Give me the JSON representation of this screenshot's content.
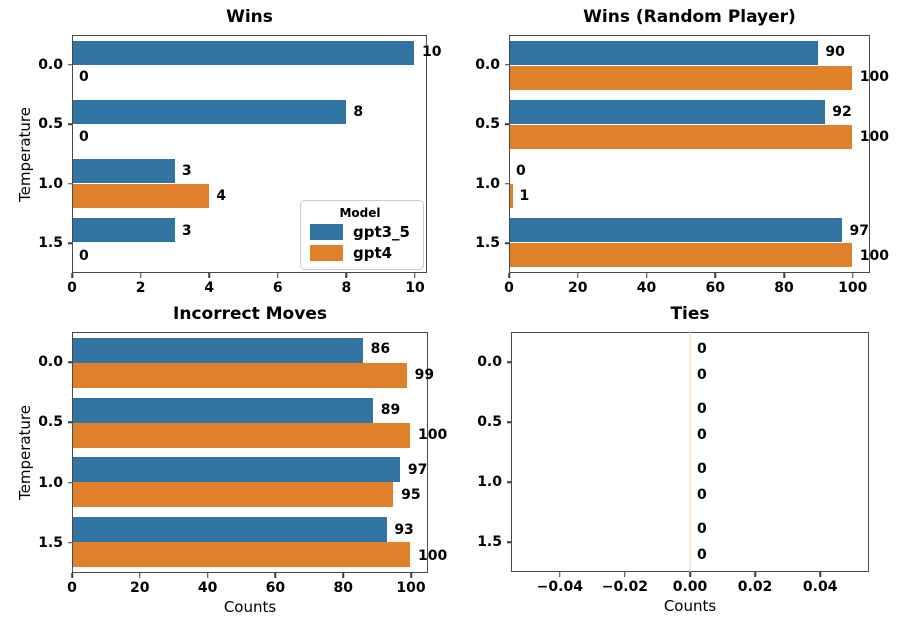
{
  "figure": {
    "background": "#ffffff",
    "colors": {
      "gpt3_5": "#3274a1",
      "gpt4": "#e1812c",
      "spine": "#4a4a4a",
      "text": "#000000"
    },
    "legend": {
      "title": "Model",
      "entries": [
        {
          "label": "gpt3_5",
          "color_key": "gpt3_5"
        },
        {
          "label": "gpt4",
          "color_key": "gpt4"
        }
      ]
    }
  },
  "chart_data": [
    {
      "id": "wins",
      "type": "bar",
      "orientation": "horizontal",
      "title": "Wins",
      "ylabel": "Temperature",
      "xlabel": "",
      "categories": [
        "0.0",
        "0.5",
        "1.0",
        "1.5"
      ],
      "series": [
        {
          "name": "gpt3_5",
          "values": [
            10,
            8,
            3,
            3
          ],
          "labels": [
            "10",
            "8",
            "3",
            "3"
          ]
        },
        {
          "name": "gpt4",
          "values": [
            0,
            0,
            4,
            0
          ],
          "labels": [
            "0",
            "0",
            "4",
            "0"
          ]
        }
      ],
      "xlim": [
        0,
        10.35
      ],
      "xticks": [
        {
          "value": 0,
          "label": "0"
        },
        {
          "value": 2,
          "label": "2"
        },
        {
          "value": 4,
          "label": "4"
        },
        {
          "value": 6,
          "label": "6"
        },
        {
          "value": 8,
          "label": "8"
        },
        {
          "value": 10,
          "label": "10"
        }
      ],
      "legend": true,
      "zero_line": false,
      "grid": false
    },
    {
      "id": "wins_random",
      "type": "bar",
      "orientation": "horizontal",
      "title": "Wins (Random Player)",
      "ylabel": "",
      "xlabel": "",
      "categories": [
        "0.0",
        "0.5",
        "1.0",
        "1.5"
      ],
      "series": [
        {
          "name": "gpt3_5",
          "values": [
            90,
            92,
            0,
            97
          ],
          "labels": [
            "90",
            "92",
            "0",
            "97"
          ]
        },
        {
          "name": "gpt4",
          "values": [
            100,
            100,
            1,
            100
          ],
          "labels": [
            "100",
            "100",
            "1",
            "100"
          ]
        }
      ],
      "xlim": [
        0,
        105
      ],
      "xticks": [
        {
          "value": 0,
          "label": "0"
        },
        {
          "value": 20,
          "label": "20"
        },
        {
          "value": 40,
          "label": "40"
        },
        {
          "value": 60,
          "label": "60"
        },
        {
          "value": 80,
          "label": "80"
        },
        {
          "value": 100,
          "label": "100"
        }
      ],
      "legend": false,
      "zero_line": false,
      "grid": false
    },
    {
      "id": "incorrect_moves",
      "type": "bar",
      "orientation": "horizontal",
      "title": "Incorrect Moves",
      "ylabel": "Temperature",
      "xlabel": "Counts",
      "categories": [
        "0.0",
        "0.5",
        "1.0",
        "1.5"
      ],
      "series": [
        {
          "name": "gpt3_5",
          "values": [
            86,
            89,
            97,
            93
          ],
          "labels": [
            "86",
            "89",
            "97",
            "93"
          ]
        },
        {
          "name": "gpt4",
          "values": [
            99,
            100,
            95,
            100
          ],
          "labels": [
            "99",
            "100",
            "95",
            "100"
          ]
        }
      ],
      "xlim": [
        0,
        105
      ],
      "xticks": [
        {
          "value": 0,
          "label": "0"
        },
        {
          "value": 20,
          "label": "20"
        },
        {
          "value": 40,
          "label": "40"
        },
        {
          "value": 60,
          "label": "60"
        },
        {
          "value": 80,
          "label": "80"
        },
        {
          "value": 100,
          "label": "100"
        }
      ],
      "legend": false,
      "zero_line": false,
      "grid": false
    },
    {
      "id": "ties",
      "type": "bar",
      "orientation": "horizontal",
      "title": "Ties",
      "ylabel": "",
      "xlabel": "Counts",
      "categories": [
        "0.0",
        "0.5",
        "1.0",
        "1.5"
      ],
      "series": [
        {
          "name": "gpt3_5",
          "values": [
            0,
            0,
            0,
            0
          ],
          "labels": [
            "0",
            "0",
            "0",
            "0"
          ]
        },
        {
          "name": "gpt4",
          "values": [
            0,
            0,
            0,
            0
          ],
          "labels": [
            "0",
            "0",
            "0",
            "0"
          ]
        }
      ],
      "xlim": [
        -0.055,
        0.055
      ],
      "xticks": [
        {
          "value": -0.04,
          "label": "−0.04"
        },
        {
          "value": -0.02,
          "label": "−0.02"
        },
        {
          "value": 0.0,
          "label": "0.00"
        },
        {
          "value": 0.02,
          "label": "0.02"
        },
        {
          "value": 0.04,
          "label": "0.04"
        }
      ],
      "legend": false,
      "zero_line": true,
      "grid": false
    }
  ]
}
